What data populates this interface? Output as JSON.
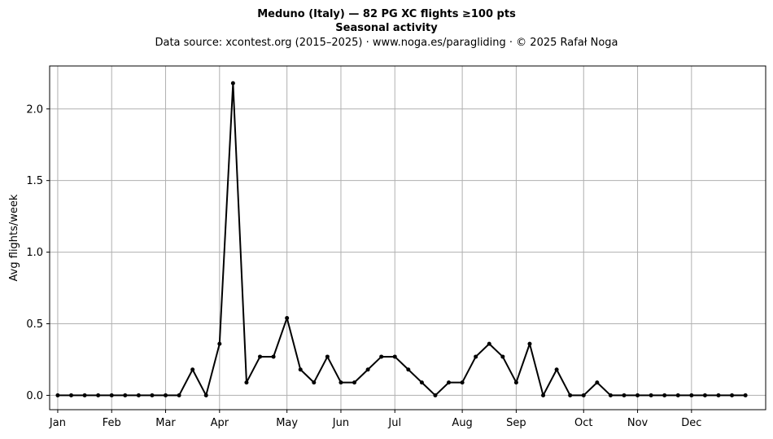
{
  "chart_data": {
    "type": "line",
    "title": "Meduno (Italy)  —  82 PG XC flights ≥100 pts",
    "subtitle": "Seasonal activity",
    "source_line": "Data source: xcontest.org (2015–2025)  ·  www.noga.es/paragliding  ·  © 2025 Rafał Noga",
    "xlabel": "",
    "ylabel": "Avg flights/week",
    "ylim": [
      -0.1,
      2.3
    ],
    "xlim": [
      0.4,
      53.5
    ],
    "grid": true,
    "yticks": [
      0.0,
      0.5,
      1.0,
      1.5,
      2.0
    ],
    "ytick_labels": [
      "0.0",
      "0.5",
      "1.0",
      "1.5",
      "2.0"
    ],
    "xticks": [
      {
        "week": 1,
        "label": "Jan"
      },
      {
        "week": 5,
        "label": "Feb"
      },
      {
        "week": 9,
        "label": "Mar"
      },
      {
        "week": 13,
        "label": "Apr"
      },
      {
        "week": 18,
        "label": "May"
      },
      {
        "week": 22,
        "label": "Jun"
      },
      {
        "week": 26,
        "label": "Jul"
      },
      {
        "week": 31,
        "label": "Aug"
      },
      {
        "week": 35,
        "label": "Sep"
      },
      {
        "week": 40,
        "label": "Oct"
      },
      {
        "week": 44,
        "label": "Nov"
      },
      {
        "week": 48,
        "label": "Dec"
      }
    ],
    "series": [
      {
        "color": "#000000",
        "x": [
          1,
          2,
          3,
          4,
          5,
          6,
          7,
          8,
          9,
          10,
          11,
          12,
          13,
          14,
          15,
          16,
          17,
          18,
          19,
          20,
          21,
          22,
          23,
          24,
          25,
          26,
          27,
          28,
          29,
          30,
          31,
          32,
          33,
          34,
          35,
          36,
          37,
          38,
          39,
          40,
          41,
          42,
          43,
          44,
          45,
          46,
          47,
          48,
          49,
          50,
          51,
          52
        ],
        "values": [
          0,
          0,
          0,
          0,
          0,
          0,
          0,
          0,
          0,
          0,
          0.18,
          0,
          0.36,
          2.18,
          0.09,
          0.27,
          0.27,
          0.54,
          0.18,
          0.09,
          0.27,
          0.09,
          0.09,
          0.18,
          0.27,
          0.27,
          0.18,
          0.09,
          0,
          0.09,
          0.09,
          0.27,
          0.36,
          0.27,
          0.09,
          0.36,
          0,
          0.18,
          0,
          0,
          0.09,
          0,
          0,
          0,
          0,
          0,
          0,
          0,
          0,
          0,
          0,
          0
        ]
      }
    ]
  }
}
